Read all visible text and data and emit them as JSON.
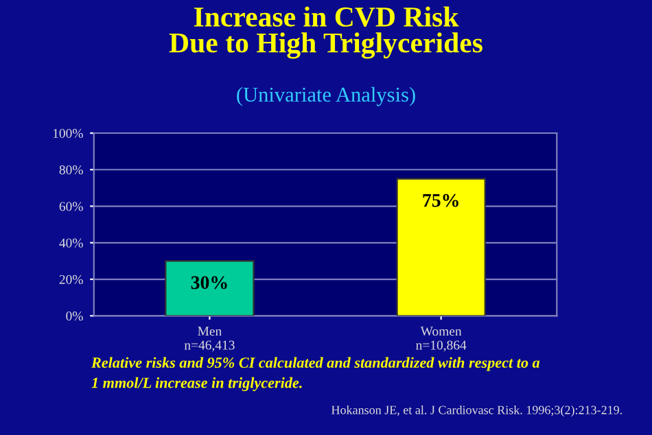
{
  "chart_data": {
    "type": "bar",
    "title": "Increase in CVD Risk\nDue to High Triglycerides",
    "subtitle": "(Univariate Analysis)",
    "categories": [
      "Men\nn=46,413",
      "Women\nn=10,864"
    ],
    "values": [
      30,
      75
    ],
    "colors": [
      "#00cc99",
      "#ffff00"
    ],
    "value_labels": [
      "30%",
      "75%"
    ],
    "ylim": [
      0,
      100
    ],
    "yticks": [
      {
        "value": 0,
        "label": "0%"
      },
      {
        "value": 20,
        "label": "20%"
      },
      {
        "value": 40,
        "label": "40%"
      },
      {
        "value": 60,
        "label": "60%"
      },
      {
        "value": 80,
        "label": "80%"
      },
      {
        "value": 100,
        "label": "100%"
      }
    ],
    "grid": "y",
    "legend": false,
    "annotations": [
      "Relative risks and 95% CI calculated and standardized with respect to a\n1 mmol/L increase in triglyceride.",
      "Hokanson JE, et al. J Cardiovasc Risk. 1996;3(2):213-219."
    ]
  }
}
